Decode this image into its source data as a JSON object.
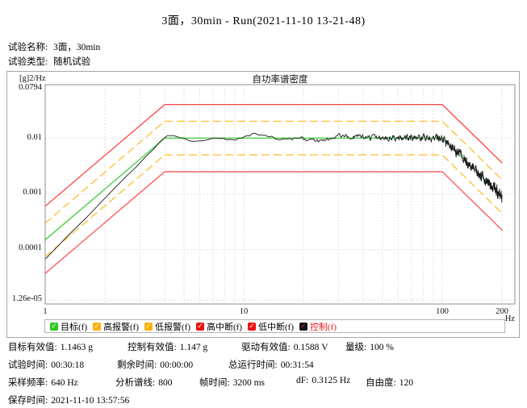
{
  "page": {
    "title": "3面，30min - Run(2021-11-10 13-21-48)"
  },
  "header": {
    "test_name_label": "试验名称:",
    "test_name": "3面，30min",
    "test_type_label": "试验类型:",
    "test_type": "随机试验"
  },
  "chart": {
    "title": "自功率谱密度",
    "y_unit": "[g]2/Hz",
    "x_unit": "Hz",
    "y_ticks": [
      "0.0794",
      "0.01",
      "0.001",
      "0.0001",
      "1.26e-05"
    ],
    "x_ticks": [
      "1",
      "10",
      "100",
      "200"
    ]
  },
  "legend": [
    {
      "label": "目标(f)",
      "color": "#2ec71e",
      "check_color": "#ffffff",
      "text_color": "#000000"
    },
    {
      "label": "高报警(f)",
      "color": "#ffaf00",
      "check_color": "#ffffff",
      "text_color": "#000000"
    },
    {
      "label": "低报警(f)",
      "color": "#ffaf00",
      "check_color": "#ffffff",
      "text_color": "#000000"
    },
    {
      "label": "高中断(f)",
      "color": "#ee1111",
      "check_color": "#ffffff",
      "text_color": "#000000"
    },
    {
      "label": "低中断(f)",
      "color": "#ee1111",
      "check_color": "#ffffff",
      "text_color": "#000000"
    },
    {
      "label": "控制(f)",
      "color": "#141414",
      "check_color": "#ee2222",
      "text_color": "#dd2222"
    }
  ],
  "chart_data": {
    "type": "line",
    "title": "自功率谱密度",
    "xlabel": "Hz",
    "ylabel": "[g]2/Hz",
    "x_scale": "log",
    "y_scale": "log",
    "xlim": [
      1,
      200
    ],
    "ylim": [
      1.26e-05,
      0.0794
    ],
    "grid": "dotted",
    "legend_position": "bottom",
    "series": [
      {
        "name": "高中断(f)",
        "role": "high-abort",
        "points": [
          [
            1,
            0.0006
          ],
          [
            4,
            0.04
          ],
          [
            100,
            0.04
          ],
          [
            200,
            0.0036
          ]
        ],
        "color": "#ff4242",
        "dash": "",
        "width": 1.3
      },
      {
        "name": "低中断(f)",
        "role": "low-abort",
        "points": [
          [
            1,
            3.75e-05
          ],
          [
            4,
            0.0025
          ],
          [
            100,
            0.0025
          ],
          [
            200,
            0.000225
          ]
        ],
        "color": "#ff6e6e",
        "dash": "",
        "width": 1.6
      },
      {
        "name": "高报警(f)",
        "role": "high-alarm",
        "points": [
          [
            1,
            0.0003
          ],
          [
            4,
            0.02
          ],
          [
            100,
            0.02
          ],
          [
            200,
            0.0018
          ]
        ],
        "color": "#ffc23d",
        "dash": "9,6",
        "width": 1.4
      },
      {
        "name": "低报警(f)",
        "role": "low-alarm",
        "points": [
          [
            1,
            7.5e-05
          ],
          [
            4,
            0.005
          ],
          [
            100,
            0.005
          ],
          [
            200,
            0.00045
          ]
        ],
        "color": "#ffc23d",
        "dash": "9,6",
        "width": 1.4
      },
      {
        "name": "目标(f)",
        "role": "target",
        "points": [
          [
            1,
            0.00015
          ],
          [
            4,
            0.01
          ],
          [
            100,
            0.01
          ],
          [
            200,
            0.0009
          ]
        ],
        "color": "#5ad45a",
        "dash": "",
        "width": 1.6
      },
      {
        "name": "控制(f)",
        "role": "control",
        "generated_noise": true,
        "tracks": "target",
        "df_hz": 0.3125,
        "start_offset_decades": -0.34,
        "noise_seed": 9,
        "color": "#1b1b1b",
        "dash": "",
        "width": 0.9
      }
    ]
  },
  "status": {
    "r1": [
      {
        "label": "目标有效值:",
        "value": "1.1463 g"
      },
      {
        "label": "控制有效值:",
        "value": "1.147 g"
      },
      {
        "label": "驱动有效值:",
        "value": "0.1588 V"
      },
      {
        "label": "量级:",
        "value": "100 %"
      }
    ],
    "r2": [
      {
        "label": "试验时间:",
        "value": "00:30:18"
      },
      {
        "label": "剩余时间:",
        "value": "00:00:00"
      },
      {
        "label": "总运行时间:",
        "value": "00:31:54"
      }
    ],
    "r3": [
      {
        "label": "采样频率:",
        "value": "640 Hz"
      },
      {
        "label": "分析谱线:",
        "value": "800"
      },
      {
        "label": "帧时间:",
        "value": "3200 ms"
      },
      {
        "label": "dF:",
        "value": "0.3125 Hz"
      },
      {
        "label": "自由度:",
        "value": "120"
      }
    ],
    "r4": [
      {
        "label": "保存时间:",
        "value": "2021-11-10 13:57:56"
      }
    ]
  }
}
